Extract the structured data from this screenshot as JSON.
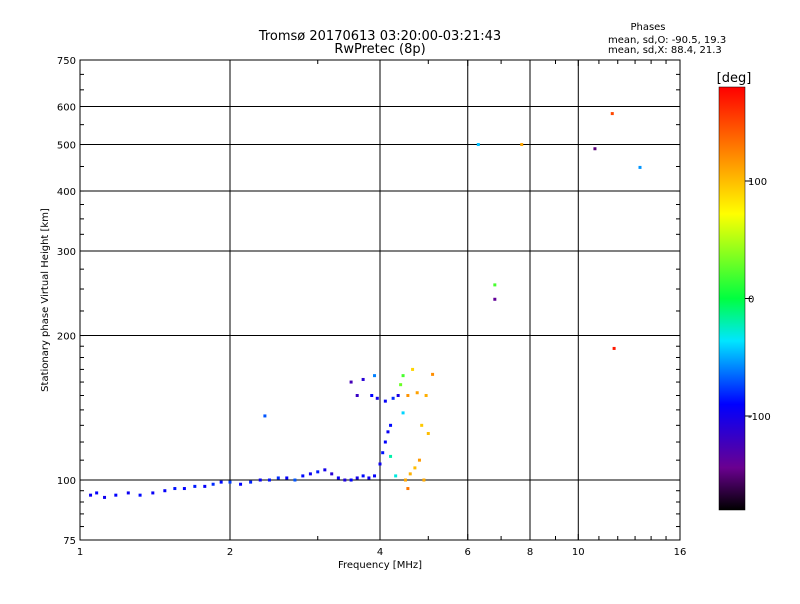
{
  "chart_data": {
    "type": "scatter",
    "title": "Tromsø 20170613 03:20:00-03:21:43",
    "subtitle": "RwPretec (8p)",
    "stats": {
      "heading": "Phases",
      "line_o": "mean, sd,O: -90.5, 19.3",
      "line_x": "mean, sd,X:  88.4, 21.3"
    },
    "xlabel": "Frequency [MHz]",
    "ylabel": "Stationary phase Virtual Height [km]",
    "xscale": "log",
    "yscale": "log",
    "xlim": [
      1,
      16
    ],
    "ylim": [
      75,
      750
    ],
    "x_ticks": [
      1,
      2,
      4,
      6,
      8,
      10,
      16
    ],
    "x_tick_labels": [
      "1",
      "2",
      "4",
      "6",
      "8",
      "10",
      "16"
    ],
    "y_ticks": [
      75,
      100,
      200,
      300,
      400,
      500,
      600,
      750
    ],
    "y_tick_labels": [
      "75",
      "100",
      "200",
      "300",
      "400",
      "500",
      "600",
      "750"
    ],
    "grid": true,
    "colorbar": {
      "label": "[deg]",
      "range": [
        -180,
        180
      ],
      "ticks": [
        100,
        0,
        -100
      ],
      "tick_labels": [
        "100",
        "0",
        "-100"
      ]
    },
    "series": [
      {
        "values": [
          [
            1.05,
            93,
            -95
          ],
          [
            1.08,
            94,
            -92
          ],
          [
            1.12,
            92,
            -98
          ],
          [
            1.18,
            93,
            -90
          ],
          [
            1.25,
            94,
            -96
          ],
          [
            1.32,
            93,
            -88
          ],
          [
            1.4,
            94,
            -94
          ],
          [
            1.48,
            95,
            -92
          ],
          [
            1.55,
            96,
            -86
          ],
          [
            1.62,
            96,
            -90
          ],
          [
            1.7,
            97,
            -84
          ],
          [
            1.78,
            97,
            -92
          ],
          [
            1.85,
            98,
            -80
          ],
          [
            1.92,
            99,
            -88
          ],
          [
            2.0,
            99,
            -76
          ],
          [
            2.1,
            98,
            -90
          ],
          [
            2.2,
            99,
            -82
          ],
          [
            2.3,
            100,
            -94
          ],
          [
            2.4,
            100,
            -86
          ],
          [
            2.5,
            101,
            -80
          ],
          [
            2.6,
            101,
            -92
          ],
          [
            2.7,
            100,
            -70
          ],
          [
            2.8,
            102,
            -88
          ],
          [
            2.9,
            103,
            -96
          ],
          [
            3.0,
            104,
            -84
          ],
          [
            3.1,
            105,
            -100
          ],
          [
            3.2,
            103,
            -110
          ],
          [
            3.3,
            101,
            -95
          ],
          [
            3.4,
            100,
            -105
          ],
          [
            3.5,
            100,
            -90
          ],
          [
            3.6,
            101,
            -100
          ],
          [
            3.7,
            102,
            -88
          ],
          [
            3.8,
            101,
            -98
          ],
          [
            3.9,
            102,
            -92
          ],
          [
            4.0,
            108,
            -96
          ],
          [
            4.05,
            114,
            -86
          ],
          [
            4.1,
            120,
            -90
          ],
          [
            4.15,
            126,
            -94
          ],
          [
            4.2,
            130,
            -88
          ],
          [
            3.5,
            160,
            -125
          ],
          [
            3.6,
            150,
            -118
          ],
          [
            3.7,
            162,
            -110
          ],
          [
            3.85,
            150,
            -90
          ],
          [
            3.95,
            148,
            -98
          ],
          [
            4.1,
            146,
            -92
          ],
          [
            4.25,
            148,
            -80
          ],
          [
            4.35,
            150,
            -104
          ],
          [
            2.35,
            136,
            -70
          ],
          [
            3.9,
            165,
            -60
          ],
          [
            4.5,
            100,
            110
          ],
          [
            4.6,
            103,
            105
          ],
          [
            4.7,
            106,
            100
          ],
          [
            4.8,
            110,
            115
          ],
          [
            4.9,
            100,
            108
          ],
          [
            4.55,
            150,
            118
          ],
          [
            4.75,
            152,
            112
          ],
          [
            4.95,
            150,
            106
          ],
          [
            4.85,
            130,
            95
          ],
          [
            5.0,
            125,
            100
          ],
          [
            4.4,
            158,
            30
          ],
          [
            4.45,
            165,
            20
          ],
          [
            4.65,
            170,
            90
          ],
          [
            5.1,
            166,
            120
          ],
          [
            4.3,
            102,
            -30
          ],
          [
            4.2,
            112,
            -20
          ],
          [
            4.45,
            138,
            -40
          ],
          [
            6.3,
            500,
            -45
          ],
          [
            7.7,
            500,
            110
          ],
          [
            6.8,
            255,
            20
          ],
          [
            6.8,
            238,
            -140
          ],
          [
            10.8,
            490,
            -150
          ],
          [
            13.3,
            448,
            -55
          ],
          [
            11.7,
            580,
            150
          ],
          [
            11.8,
            188,
            170
          ],
          [
            4.55,
            96,
            130
          ]
        ]
      }
    ]
  }
}
